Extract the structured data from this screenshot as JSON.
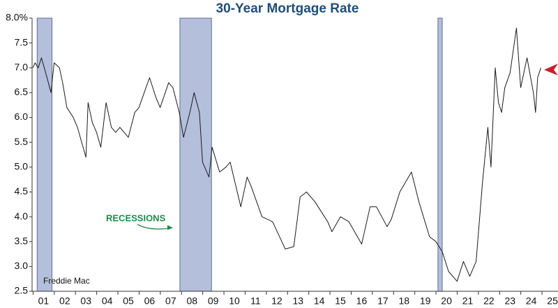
{
  "chart_data": {
    "type": "line",
    "title": "30-Year Mortgage Rate",
    "annotations": [
      "RECESSIONS",
      "Freddie Mac"
    ],
    "recessions": [
      [
        2001.2,
        2001.9
      ],
      [
        2007.93,
        2009.42
      ],
      [
        2020.1,
        2020.3
      ]
    ],
    "series": [
      {
        "name": "30-Year Mortgage Rate",
        "color": "#1a1a1a",
        "x": [
          2001.0,
          2001.1,
          2001.25,
          2001.4,
          2001.6,
          2001.85,
          2002.0,
          2002.25,
          2002.4,
          2002.6,
          2002.9,
          2003.1,
          2003.3,
          2003.5,
          2003.6,
          2003.8,
          2004.0,
          2004.2,
          2004.45,
          2004.7,
          2004.9,
          2005.1,
          2005.5,
          2005.8,
          2006.0,
          2006.5,
          2006.8,
          2007.0,
          2007.4,
          2007.6,
          2007.9,
          2008.1,
          2008.4,
          2008.6,
          2008.85,
          2009.0,
          2009.3,
          2009.45,
          2009.8,
          2010.1,
          2010.3,
          2010.8,
          2011.1,
          2011.3,
          2011.8,
          2012.3,
          2012.9,
          2013.3,
          2013.6,
          2013.9,
          2014.3,
          2014.9,
          2015.1,
          2015.5,
          2015.9,
          2016.5,
          2016.9,
          2017.2,
          2017.7,
          2017.9,
          2018.3,
          2018.85,
          2019.2,
          2019.7,
          2020.0,
          2020.3,
          2020.6,
          2021.0,
          2021.3,
          2021.6,
          2021.9,
          2022.2,
          2022.45,
          2022.6,
          2022.8,
          2022.95,
          2023.1,
          2023.25,
          2023.5,
          2023.8,
          2024.0,
          2024.3,
          2024.6,
          2024.7,
          2024.8,
          2024.95
        ],
        "values": [
          7.0,
          7.1,
          7.0,
          7.2,
          6.9,
          6.5,
          7.1,
          7.0,
          6.7,
          6.2,
          6.0,
          5.8,
          5.5,
          5.2,
          6.3,
          5.9,
          5.7,
          5.4,
          6.3,
          5.8,
          5.7,
          5.8,
          5.6,
          6.1,
          6.2,
          6.8,
          6.4,
          6.2,
          6.7,
          6.6,
          6.1,
          5.6,
          6.1,
          6.5,
          6.1,
          5.1,
          4.8,
          5.4,
          4.9,
          5.0,
          5.1,
          4.2,
          4.8,
          4.6,
          4.0,
          3.9,
          3.35,
          3.4,
          4.4,
          4.5,
          4.3,
          3.9,
          3.7,
          4.0,
          3.9,
          3.45,
          4.2,
          4.2,
          3.8,
          3.95,
          4.5,
          4.9,
          4.3,
          3.6,
          3.5,
          3.3,
          2.9,
          2.7,
          3.1,
          2.8,
          3.1,
          4.7,
          5.8,
          5.0,
          7.0,
          6.3,
          6.1,
          6.6,
          6.9,
          7.8,
          6.6,
          7.2,
          6.5,
          6.1,
          6.8,
          7.0
        ]
      }
    ],
    "xlim": [
      2000.96,
      2025.76
    ],
    "xticks": [
      {
        "value": 2001.5,
        "label": "01"
      },
      {
        "value": 2002.5,
        "label": "02"
      },
      {
        "value": 2003.5,
        "label": "03"
      },
      {
        "value": 2004.5,
        "label": "04"
      },
      {
        "value": 2005.5,
        "label": "05"
      },
      {
        "value": 2006.5,
        "label": "06"
      },
      {
        "value": 2007.5,
        "label": "07"
      },
      {
        "value": 2008.5,
        "label": "08"
      },
      {
        "value": 2009.5,
        "label": "09"
      },
      {
        "value": 2010.5,
        "label": "10"
      },
      {
        "value": 2011.5,
        "label": "11"
      },
      {
        "value": 2012.5,
        "label": "12"
      },
      {
        "value": 2013.5,
        "label": "13"
      },
      {
        "value": 2014.5,
        "label": "14"
      },
      {
        "value": 2015.5,
        "label": "15"
      },
      {
        "value": 2016.5,
        "label": "16"
      },
      {
        "value": 2017.5,
        "label": "17"
      },
      {
        "value": 2018.5,
        "label": "18"
      },
      {
        "value": 2019.5,
        "label": "19"
      },
      {
        "value": 2020.5,
        "label": "20"
      },
      {
        "value": 2021.5,
        "label": "21"
      },
      {
        "value": 2022.5,
        "label": "22"
      },
      {
        "value": 2023.5,
        "label": "23"
      },
      {
        "value": 2024.5,
        "label": "24"
      },
      {
        "value": 2025.5,
        "label": "25"
      }
    ],
    "ylim": [
      2.5,
      8.0
    ],
    "yticks": [
      {
        "value": 8.0,
        "label": "8.0%"
      },
      {
        "value": 7.5,
        "label": "7.5"
      },
      {
        "value": 7.0,
        "label": "7.0"
      },
      {
        "value": 6.5,
        "label": "6.5"
      },
      {
        "value": 6.0,
        "label": "6.0"
      },
      {
        "value": 5.5,
        "label": "5.5"
      },
      {
        "value": 5.0,
        "label": "5.0"
      },
      {
        "value": 4.5,
        "label": "4.5"
      },
      {
        "value": 4.0,
        "label": "4.0"
      },
      {
        "value": 3.5,
        "label": "3.5"
      },
      {
        "value": 3.0,
        "label": "3.0"
      },
      {
        "value": 2.5,
        "label": "2.5"
      }
    ]
  }
}
